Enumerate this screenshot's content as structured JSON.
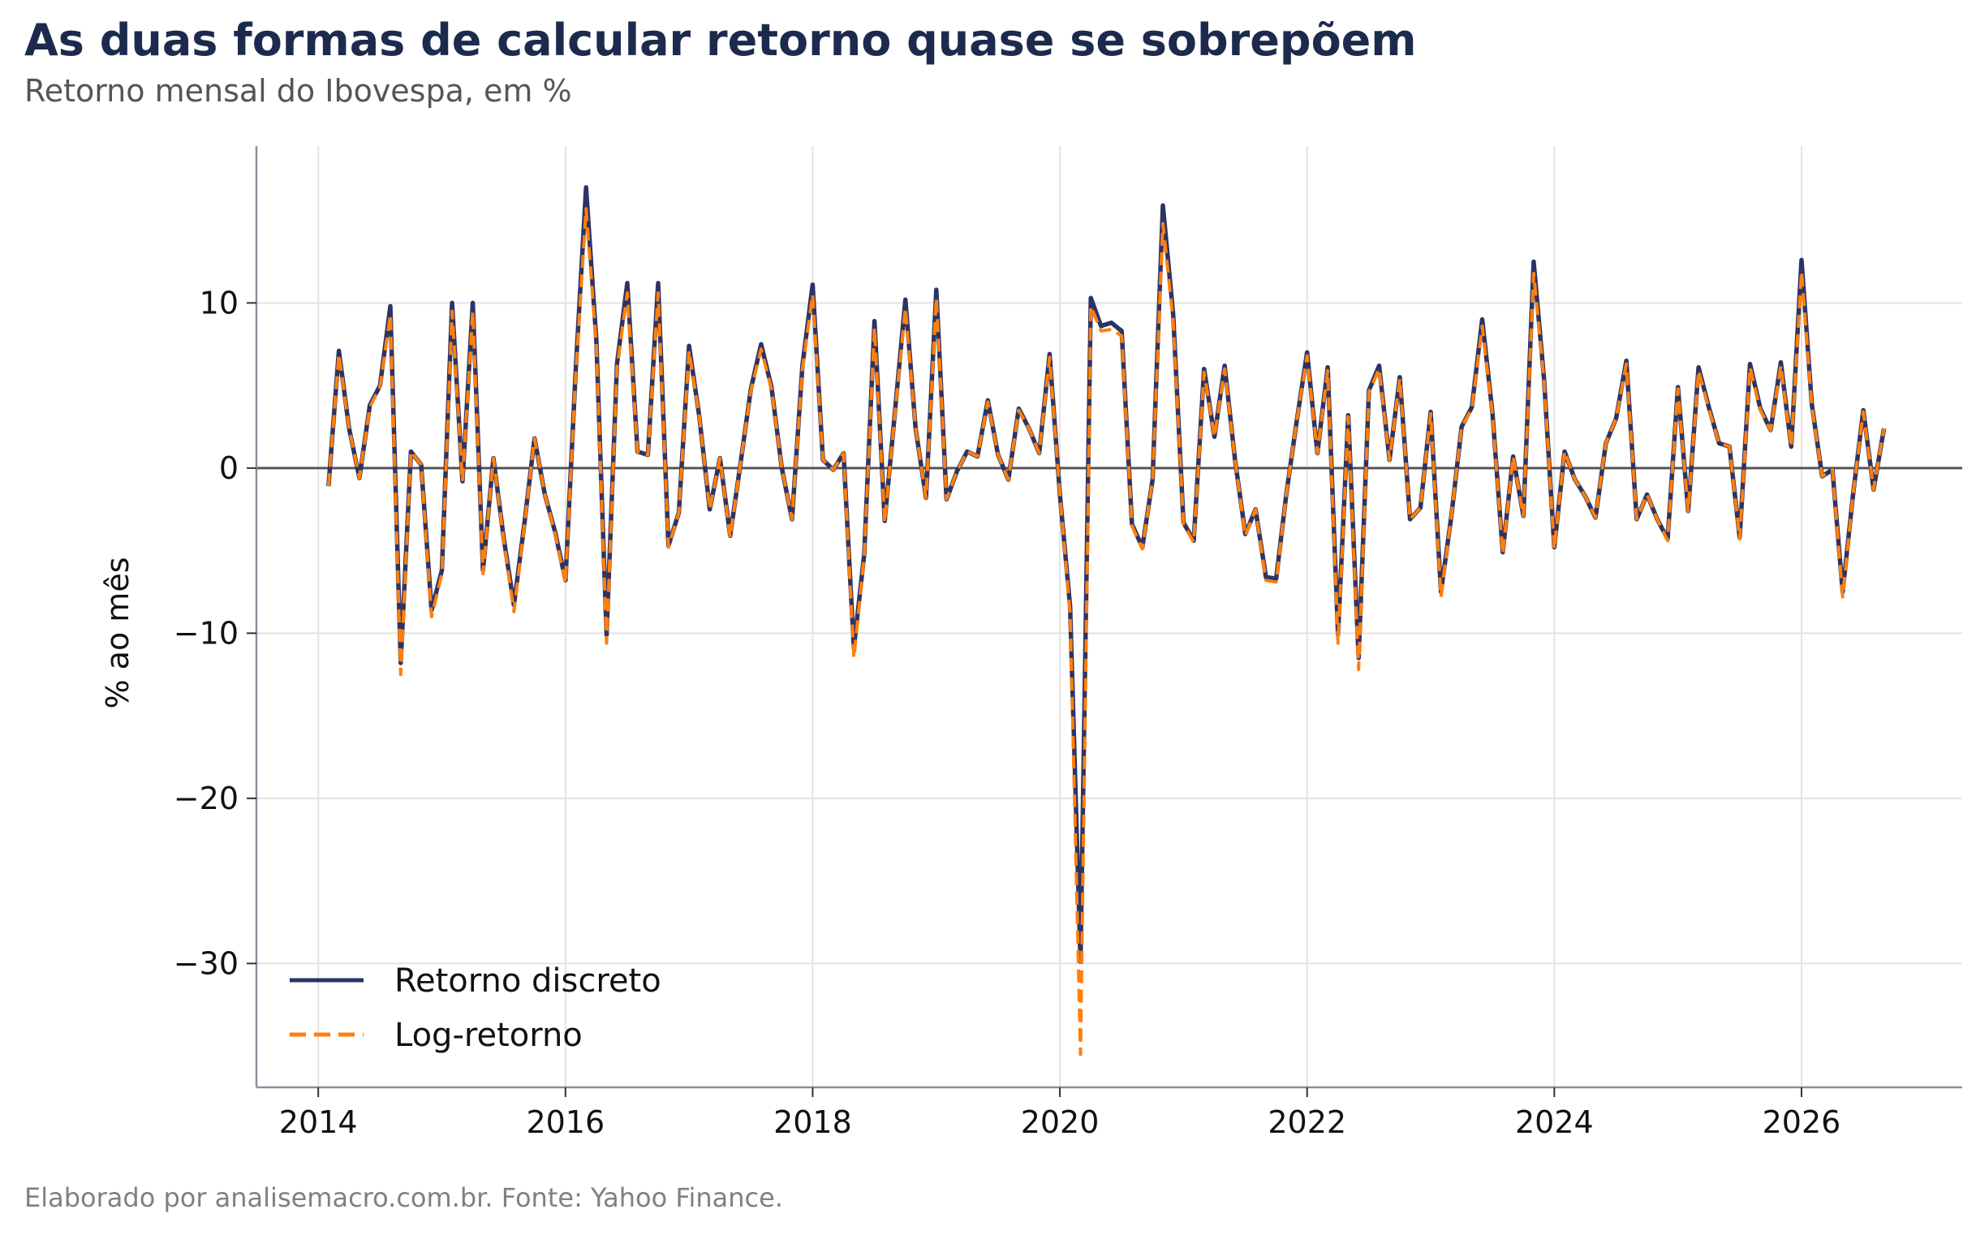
{
  "title": "As duas formas de calcular retorno quase se sobrepõem",
  "subtitle": "Retorno mensal do Ibovespa, em %",
  "caption": "Elaborado por analisemacro.com.br. Fonte: Yahoo Finance.",
  "chart_data": {
    "type": "line",
    "title": "As duas formas de calcular retorno quase se sobrepõem",
    "subtitle": "Retorno mensal do Ibovespa, em %",
    "xlabel": "",
    "ylabel": "% ao mês",
    "xlim": [
      2013.5,
      2027.3
    ],
    "ylim": [
      -37.5,
      19.5
    ],
    "xticks": [
      2014,
      2016,
      2018,
      2020,
      2022,
      2024,
      2026
    ],
    "xtick_labels": [
      "2014",
      "2016",
      "2018",
      "2020",
      "2022",
      "2024",
      "2026"
    ],
    "yticks": [
      -30,
      -20,
      -10,
      0,
      10
    ],
    "ytick_labels": [
      "−30",
      "−20",
      "−10",
      "0",
      "10"
    ],
    "grid": true,
    "zero_line": true,
    "legend_position": "lower-left",
    "x": [
      2014.083,
      2014.167,
      2014.25,
      2014.333,
      2014.417,
      2014.5,
      2014.583,
      2014.667,
      2014.75,
      2014.833,
      2014.917,
      2015.0,
      2015.083,
      2015.167,
      2015.25,
      2015.333,
      2015.417,
      2015.5,
      2015.583,
      2015.667,
      2015.75,
      2015.833,
      2015.917,
      2016.0,
      2016.083,
      2016.167,
      2016.25,
      2016.333,
      2016.417,
      2016.5,
      2016.583,
      2016.667,
      2016.75,
      2016.833,
      2016.917,
      2017.0,
      2017.083,
      2017.167,
      2017.25,
      2017.333,
      2017.417,
      2017.5,
      2017.583,
      2017.667,
      2017.75,
      2017.833,
      2017.917,
      2018.0,
      2018.083,
      2018.167,
      2018.25,
      2018.333,
      2018.417,
      2018.5,
      2018.583,
      2018.667,
      2018.75,
      2018.833,
      2018.917,
      2019.0,
      2019.083,
      2019.167,
      2019.25,
      2019.333,
      2019.417,
      2019.5,
      2019.583,
      2019.667,
      2019.75,
      2019.833,
      2019.917,
      2020.0,
      2020.083,
      2020.167,
      2020.25,
      2020.333,
      2020.417,
      2020.5,
      2020.583,
      2020.667,
      2020.75,
      2020.833,
      2020.917,
      2021.0,
      2021.083,
      2021.167,
      2021.25,
      2021.333,
      2021.417,
      2021.5,
      2021.583,
      2021.667,
      2021.75,
      2021.833,
      2021.917,
      2022.0,
      2022.083,
      2022.167,
      2022.25,
      2022.333,
      2022.417,
      2022.5,
      2022.583,
      2022.667,
      2022.75,
      2022.833,
      2022.917,
      2023.0,
      2023.083,
      2023.167,
      2023.25,
      2023.333,
      2023.417,
      2023.5,
      2023.583,
      2023.667,
      2023.75,
      2023.833,
      2023.917,
      2024.0,
      2024.083,
      2024.167,
      2024.25,
      2024.333,
      2024.417,
      2024.5,
      2024.583,
      2024.667,
      2024.75,
      2024.833,
      2024.917,
      2025.0,
      2025.083,
      2025.167,
      2025.25,
      2025.333,
      2025.417,
      2025.5,
      2025.583,
      2025.667,
      2025.75,
      2025.833,
      2025.917,
      2026.0,
      2026.083,
      2026.167,
      2026.25,
      2026.333,
      2026.417,
      2026.5,
      2026.583,
      2026.667
    ],
    "series": [
      {
        "name": "Retorno discreto",
        "color": "#2b3467",
        "style": "solid",
        "values": [
          -1.1,
          7.1,
          2.4,
          -0.6,
          3.8,
          5.0,
          9.8,
          -11.8,
          1.0,
          0.2,
          -8.6,
          -6.2,
          10.0,
          -0.8,
          10.0,
          -6.2,
          0.6,
          -4.2,
          -8.3,
          -3.4,
          1.8,
          -1.6,
          -3.9,
          -6.8,
          5.9,
          17.0,
          7.7,
          -10.1,
          6.3,
          11.2,
          1.0,
          0.8,
          11.2,
          -4.7,
          -2.7,
          7.4,
          3.1,
          -2.5,
          0.6,
          -4.1,
          0.3,
          4.8,
          7.5,
          4.9,
          0.0,
          -3.1,
          6.2,
          11.1,
          0.5,
          -0.1,
          0.9,
          -10.9,
          -5.2,
          8.9,
          -3.2,
          3.5,
          10.2,
          2.4,
          -1.8,
          10.8,
          -1.9,
          -0.2,
          1.0,
          0.7,
          4.1,
          0.8,
          -0.7,
          3.6,
          2.4,
          0.9,
          6.9,
          -1.6,
          -8.4,
          -29.9,
          10.3,
          8.6,
          8.8,
          8.3,
          -3.4,
          -4.8,
          -0.7,
          15.9,
          9.3,
          -3.3,
          -4.4,
          6.0,
          1.9,
          6.2,
          0.5,
          -4.0,
          -2.5,
          -6.6,
          -6.7,
          -1.5,
          2.9,
          7.0,
          0.9,
          6.1,
          -10.1,
          3.2,
          -11.5,
          4.7,
          6.2,
          0.5,
          5.5,
          -3.1,
          -2.4,
          3.4,
          -7.5,
          -2.9,
          2.5,
          3.7,
          9.0,
          3.3,
          -5.1,
          0.7,
          -2.9,
          12.5,
          5.4,
          -4.8,
          1.0,
          -0.7,
          -1.7,
          -3.0,
          1.5,
          3.0,
          6.5,
          -3.1,
          -1.6,
          -3.1,
          -4.3,
          4.9,
          -2.6,
          6.1,
          3.7,
          1.5,
          1.3,
          -4.2,
          6.3,
          3.6,
          2.3,
          6.4,
          1.3,
          12.6,
          3.9,
          -0.5,
          -0.1,
          -7.5,
          -1.6,
          3.5,
          -1.3,
          2.4
        ]
      },
      {
        "name": "Log-retorno",
        "color": "#ff7f0e",
        "style": "dashed",
        "values": [
          -1.1,
          6.9,
          2.4,
          -0.6,
          3.7,
          4.9,
          9.3,
          -12.5,
          1.0,
          0.2,
          -9.0,
          -6.4,
          9.5,
          -0.8,
          9.5,
          -6.4,
          0.6,
          -4.3,
          -8.7,
          -3.5,
          1.8,
          -1.6,
          -4.0,
          -7.0,
          5.7,
          15.7,
          7.4,
          -10.6,
          6.1,
          10.6,
          1.0,
          0.8,
          10.6,
          -4.8,
          -2.7,
          7.1,
          3.1,
          -2.5,
          0.6,
          -4.2,
          0.3,
          4.7,
          7.2,
          4.8,
          0.0,
          -3.1,
          6.0,
          10.5,
          0.5,
          -0.1,
          0.9,
          -11.5,
          -5.3,
          8.5,
          -3.3,
          3.4,
          9.7,
          2.4,
          -1.8,
          10.3,
          -1.9,
          -0.2,
          1.0,
          0.7,
          4.0,
          0.8,
          -0.7,
          3.5,
          2.4,
          0.9,
          6.7,
          -1.6,
          -8.8,
          -35.5,
          9.8,
          8.3,
          8.4,
          8.0,
          -3.5,
          -4.9,
          -0.7,
          14.8,
          8.9,
          -3.4,
          -4.5,
          5.8,
          1.9,
          6.0,
          0.5,
          -4.1,
          -2.5,
          -6.8,
          -6.9,
          -1.5,
          2.9,
          6.8,
          0.9,
          5.9,
          -10.6,
          3.1,
          -12.2,
          4.6,
          6.0,
          0.5,
          5.4,
          -3.1,
          -2.4,
          3.3,
          -7.8,
          -2.9,
          2.5,
          3.6,
          8.6,
          3.2,
          -5.2,
          0.7,
          -2.9,
          11.8,
          5.3,
          -4.9,
          1.0,
          -0.7,
          -1.7,
          -3.0,
          1.5,
          3.0,
          6.3,
          -3.1,
          -1.6,
          -3.1,
          -4.4,
          4.8,
          -2.6,
          5.9,
          3.6,
          1.5,
          1.3,
          -4.3,
          6.1,
          3.5,
          2.3,
          6.2,
          1.3,
          11.9,
          3.8,
          -0.5,
          -0.1,
          -7.8,
          -1.6,
          3.4,
          -1.3,
          2.4
        ]
      }
    ]
  }
}
